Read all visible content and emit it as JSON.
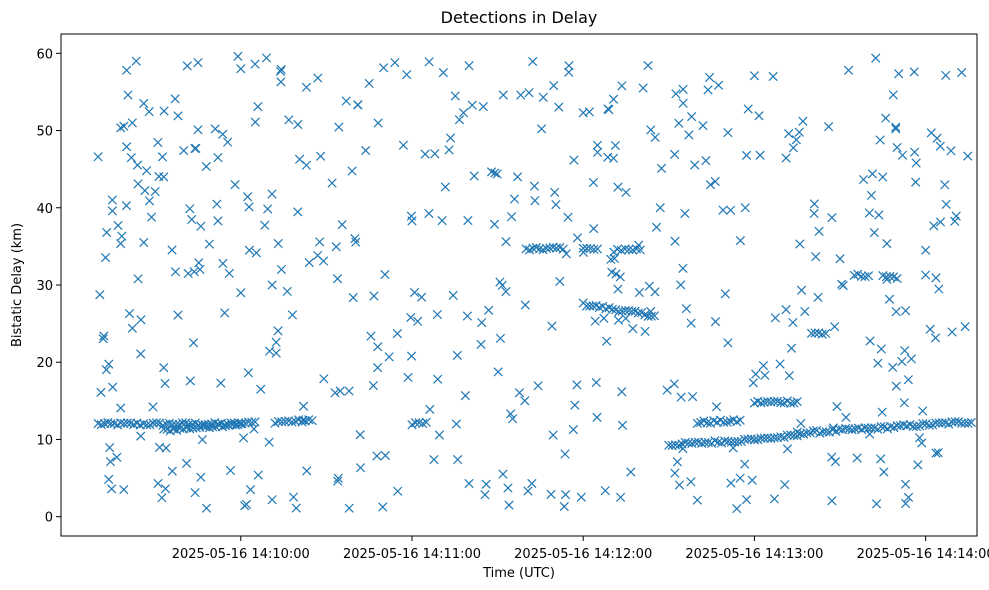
{
  "chart_data": {
    "type": "scatter",
    "title": "Detections in Delay",
    "xlabel": "Time (UTC)",
    "ylabel": "Bistatic Delay (km)",
    "marker": "x",
    "color": "#1f77b4",
    "grid": false,
    "xlim": [
      "2025-05-16 14:08:57",
      "2025-05-16 14:14:18"
    ],
    "ylim": [
      -2.5,
      62.5
    ],
    "x_ticks": [
      "2025-05-16 14:10:00",
      "2025-05-16 14:11:00",
      "2025-05-16 14:12:00",
      "2025-05-16 14:13:00",
      "2025-05-16 14:14:00"
    ],
    "y_ticks": [
      0,
      10,
      20,
      30,
      40,
      50,
      60
    ],
    "time_start": "2025-05-16 14:09:10",
    "time_end": "2025-05-16 14:14:16",
    "tracks": [
      {
        "t_start": "2025-05-16 14:09:10",
        "t_end": "2025-05-16 14:10:00",
        "delay_start": 12.0,
        "delay_end": 12.0
      },
      {
        "t_start": "2025-05-16 14:09:33",
        "t_end": "2025-05-16 14:10:05",
        "delay_start": 11.2,
        "delay_end": 12.2
      },
      {
        "t_start": "2025-05-16 14:10:12",
        "t_end": "2025-05-16 14:10:25",
        "delay_start": 12.3,
        "delay_end": 12.4
      },
      {
        "t_start": "2025-05-16 14:11:00",
        "t_end": "2025-05-16 14:11:05",
        "delay_start": 12.1,
        "delay_end": 12.1
      },
      {
        "t_start": "2025-05-16 14:11:40",
        "t_end": "2025-05-16 14:11:53",
        "delay_start": 34.6,
        "delay_end": 34.8
      },
      {
        "t_start": "2025-05-16 14:12:00",
        "t_end": "2025-05-16 14:12:25",
        "delay_start": 27.5,
        "delay_end": 26.0
      },
      {
        "t_start": "2025-05-16 14:12:00",
        "t_end": "2025-05-16 14:12:05",
        "delay_start": 34.7,
        "delay_end": 34.6
      },
      {
        "t_start": "2025-05-16 14:12:10",
        "t_end": "2025-05-16 14:12:13",
        "delay_start": 31.5,
        "delay_end": 31.2
      },
      {
        "t_start": "2025-05-16 14:12:12",
        "t_end": "2025-05-16 14:12:20",
        "delay_start": 34.6,
        "delay_end": 34.6
      },
      {
        "t_start": "2025-05-16 14:12:30",
        "t_end": "2025-05-16 14:13:00",
        "delay_start": 9.3,
        "delay_end": 10.0
      },
      {
        "t_start": "2025-05-16 14:12:40",
        "t_end": "2025-05-16 14:12:55",
        "delay_start": 12.2,
        "delay_end": 12.4
      },
      {
        "t_start": "2025-05-16 14:13:00",
        "t_end": "2025-05-16 14:13:15",
        "delay_start": 14.8,
        "delay_end": 14.9
      },
      {
        "t_start": "2025-05-16 14:13:00",
        "t_end": "2025-05-16 14:13:15",
        "delay_start": 10.0,
        "delay_end": 10.5
      },
      {
        "t_start": "2025-05-16 14:13:15",
        "t_end": "2025-05-16 14:14:16",
        "delay_start": 10.8,
        "delay_end": 12.3
      },
      {
        "t_start": "2025-05-16 14:13:20",
        "t_end": "2025-05-16 14:13:25",
        "delay_start": 23.8,
        "delay_end": 23.8
      },
      {
        "t_start": "2025-05-16 14:13:35",
        "t_end": "2025-05-16 14:13:40",
        "delay_start": 31.2,
        "delay_end": 31.3
      },
      {
        "t_start": "2025-05-16 14:13:45",
        "t_end": "2025-05-16 14:13:50",
        "delay_start": 31.1,
        "delay_end": 31.0
      }
    ],
    "points": [
      [
        "2025-05-16 14:09:10",
        46.6
      ],
      [
        "2025-05-16 14:09:11",
        16.1
      ],
      [
        "2025-05-16 14:09:12",
        23.4
      ],
      [
        "2025-05-16 14:09:13",
        36.8
      ],
      [
        "2025-05-16 14:09:15",
        41.0
      ],
      [
        "2025-05-16 14:09:15",
        39.6
      ],
      [
        "2025-05-16 14:09:17",
        37.7
      ],
      [
        "2025-05-16 14:09:19",
        3.5
      ],
      [
        "2025-05-16 14:09:20",
        57.8
      ],
      [
        "2025-05-16 14:09:20",
        47.9
      ],
      [
        "2025-05-16 14:09:21",
        26.3
      ],
      [
        "2025-05-16 14:09:22",
        24.4
      ],
      [
        "2025-05-16 14:09:22",
        51.0
      ],
      [
        "2025-05-16 14:09:24",
        43.1
      ],
      [
        "2025-05-16 14:09:24",
        30.8
      ],
      [
        "2025-05-16 14:09:25",
        25.5
      ],
      [
        "2025-05-16 14:09:26",
        35.5
      ],
      [
        "2025-05-16 14:09:26",
        53.5
      ],
      [
        "2025-05-16 14:09:27",
        44.8
      ],
      [
        "2025-05-16 14:09:28",
        40.9
      ],
      [
        "2025-05-16 14:09:30",
        42.1
      ],
      [
        "2025-05-16 14:09:31",
        4.3
      ],
      [
        "2025-05-16 14:09:33",
        44.0
      ],
      [
        "2025-05-16 14:09:33",
        19.3
      ],
      [
        "2025-05-16 14:09:36",
        5.9
      ],
      [
        "2025-05-16 14:09:37",
        54.1
      ],
      [
        "2025-05-16 14:09:38",
        51.9
      ],
      [
        "2025-05-16 14:09:38",
        26.1
      ],
      [
        "2025-05-16 14:09:40",
        47.4
      ],
      [
        "2025-05-16 14:09:41",
        6.9
      ],
      [
        "2025-05-16 14:09:45",
        58.8
      ],
      [
        "2025-05-16 14:09:45",
        50.1
      ],
      [
        "2025-05-16 14:09:46",
        37.6
      ],
      [
        "2025-05-16 14:09:46",
        5.1
      ],
      [
        "2025-05-16 14:09:48",
        1.1
      ],
      [
        "2025-05-16 14:09:49",
        35.3
      ],
      [
        "2025-05-16 14:09:52",
        46.5
      ],
      [
        "2025-05-16 14:09:52",
        38.3
      ],
      [
        "2025-05-16 14:09:53",
        17.3
      ],
      [
        "2025-05-16 14:09:56",
        31.5
      ],
      [
        "2025-05-16 14:09:58",
        43.0
      ],
      [
        "2025-05-16 14:09:59",
        59.6
      ],
      [
        "2025-05-16 14:10:00",
        58.0
      ],
      [
        "2025-05-16 14:10:00",
        29.0
      ],
      [
        "2025-05-16 14:10:02",
        1.6
      ],
      [
        "2025-05-16 14:10:03",
        34.5
      ],
      [
        "2025-05-16 14:10:05",
        58.6
      ],
      [
        "2025-05-16 14:10:06",
        53.1
      ],
      [
        "2025-05-16 14:10:07",
        16.5
      ],
      [
        "2025-05-16 14:10:09",
        59.4
      ],
      [
        "2025-05-16 14:10:11",
        30.0
      ],
      [
        "2025-05-16 14:10:11",
        2.2
      ],
      [
        "2025-05-16 14:10:22",
        14.3
      ],
      [
        "2025-05-16 14:10:23",
        55.6
      ],
      [
        "2025-05-16 14:10:23",
        45.5
      ],
      [
        "2025-05-16 14:10:24",
        32.9
      ],
      [
        "2025-05-16 14:10:27",
        56.8
      ],
      [
        "2025-05-16 14:10:29",
        33.1
      ],
      [
        "2025-05-16 14:10:32",
        43.2
      ],
      [
        "2025-05-16 14:10:34",
        4.6
      ],
      [
        "2025-05-16 14:10:38",
        1.1
      ],
      [
        "2025-05-16 14:10:40",
        36.0
      ],
      [
        "2025-05-16 14:10:41",
        53.3
      ],
      [
        "2025-05-16 14:10:45",
        56.1
      ],
      [
        "2025-05-16 14:10:48",
        22.0
      ],
      [
        "2025-05-16 14:10:52",
        20.7
      ],
      [
        "2025-05-16 14:10:54",
        58.8
      ],
      [
        "2025-05-16 14:10:55",
        3.3
      ],
      [
        "2025-05-16 14:10:57",
        48.1
      ],
      [
        "2025-05-16 14:11:00",
        38.3
      ],
      [
        "2025-05-16 14:11:02",
        25.3
      ],
      [
        "2025-05-16 14:11:06",
        58.9
      ],
      [
        "2025-05-16 14:11:08",
        47.0
      ],
      [
        "2025-05-16 14:11:09",
        17.8
      ],
      [
        "2025-05-16 14:11:11",
        57.5
      ],
      [
        "2025-05-16 14:11:13",
        47.5
      ],
      [
        "2025-05-16 14:11:16",
        7.4
      ],
      [
        "2025-05-16 14:11:20",
        58.4
      ],
      [
        "2025-05-16 14:11:20",
        4.3
      ],
      [
        "2025-05-16 14:11:25",
        53.1
      ],
      [
        "2025-05-16 14:11:29",
        44.5
      ],
      [
        "2025-05-16 14:11:32",
        54.6
      ],
      [
        "2025-05-16 14:11:34",
        1.5
      ],
      [
        "2025-05-16 14:11:37",
        44.0
      ],
      [
        "2025-05-16 14:11:41",
        54.9
      ],
      [
        "2025-05-16 14:11:42",
        4.3
      ],
      [
        "2025-05-16 14:11:46",
        54.3
      ],
      [
        "2025-05-16 14:11:50",
        42.0
      ],
      [
        "2025-05-16 14:11:55",
        58.4
      ],
      [
        "2025-05-16 14:11:58",
        36.1
      ],
      [
        "2025-05-16 14:12:00",
        52.3
      ],
      [
        "2025-05-16 14:12:05",
        48.1
      ],
      [
        "2025-05-16 14:12:09",
        52.7
      ],
      [
        "2025-05-16 14:12:15",
        42.0
      ],
      [
        "2025-05-16 14:12:21",
        55.5
      ],
      [
        "2025-05-16 14:12:27",
        40.0
      ],
      [
        "2025-05-16 14:12:33",
        7.1
      ],
      [
        "2025-05-16 14:12:38",
        51.8
      ],
      [
        "2025-05-16 14:12:43",
        46.1
      ],
      [
        "2025-05-16 14:12:49",
        39.7
      ],
      [
        "2025-05-16 14:12:55",
        5.0
      ],
      [
        "2025-05-16 14:13:00",
        57.1
      ],
      [
        "2025-05-16 14:13:02",
        46.8
      ],
      [
        "2025-05-16 14:13:07",
        2.3
      ],
      [
        "2025-05-16 14:13:12",
        49.6
      ],
      [
        "2025-05-16 14:13:17",
        51.2
      ],
      [
        "2025-05-16 14:13:21",
        40.5
      ],
      [
        "2025-05-16 14:13:26",
        50.5
      ],
      [
        "2025-05-16 14:13:30",
        33.4
      ],
      [
        "2025-05-16 14:13:33",
        57.8
      ],
      [
        "2025-05-16 14:13:36",
        7.6
      ],
      [
        "2025-05-16 14:13:41",
        41.6
      ],
      [
        "2025-05-16 14:13:46",
        51.6
      ],
      [
        "2025-05-16 14:13:50",
        47.8
      ],
      [
        "2025-05-16 14:13:54",
        2.5
      ],
      [
        "2025-05-16 14:13:56",
        57.6
      ],
      [
        "2025-05-16 14:14:00",
        34.5
      ],
      [
        "2025-05-16 14:14:02",
        49.7
      ],
      [
        "2025-05-16 14:14:04",
        49.0
      ],
      [
        "2025-05-16 14:14:00",
        31.3
      ]
    ]
  }
}
